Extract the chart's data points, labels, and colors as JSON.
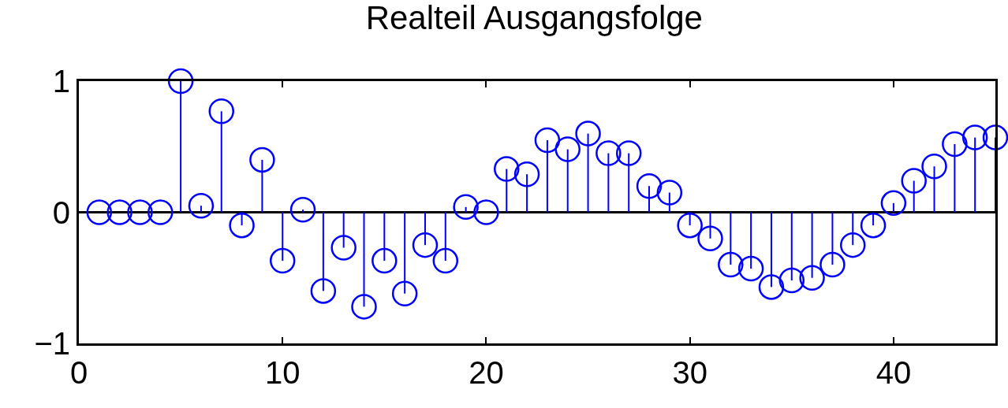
{
  "chart_data": {
    "type": "lollipop",
    "title": "Realteil Ausgangsfolge",
    "x": [
      1,
      2,
      3,
      4,
      5,
      6,
      7,
      8,
      9,
      10,
      11,
      12,
      13,
      14,
      15,
      16,
      17,
      18,
      19,
      20,
      21,
      22,
      23,
      24,
      25,
      26,
      27,
      28,
      29,
      30,
      31,
      32,
      33,
      34,
      35,
      36,
      37,
      38,
      39,
      40,
      41,
      42,
      43,
      44,
      45
    ],
    "series": [
      {
        "color": "#0000ff",
        "values": [
          0,
          0,
          0,
          0,
          1,
          0.05,
          0.77,
          -0.1,
          0.4,
          -0.37,
          0.02,
          -0.6,
          -0.27,
          -0.72,
          -0.37,
          -0.62,
          -0.25,
          -0.37,
          0.04,
          0,
          0.33,
          0.29,
          0.55,
          0.48,
          0.6,
          0.45,
          0.45,
          0.2,
          0.15,
          -0.1,
          -0.2,
          -0.4,
          -0.43,
          -0.57,
          -0.52,
          -0.5,
          -0.4,
          -0.25,
          -0.1,
          0.07,
          0.24,
          0.35,
          0.52,
          0.57,
          0.57
        ]
      }
    ],
    "xlim": [
      0,
      45
    ],
    "xticks": [
      0,
      10,
      20,
      30,
      40
    ],
    "ylim": [
      -1,
      1
    ],
    "yticks": [
      {
        "value": -1,
        "label": "−1"
      },
      0,
      1
    ],
    "marker": "circle",
    "grid": false,
    "ref_lines": [
      {
        "axis": "y",
        "value": 0,
        "color": "#000000"
      }
    ]
  }
}
